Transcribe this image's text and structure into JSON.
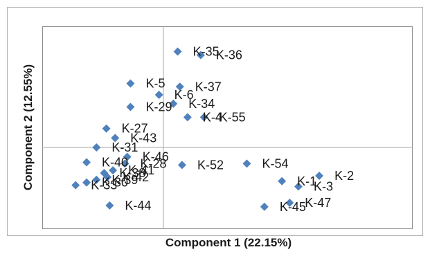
{
  "chart_data": {
    "type": "scatter",
    "title": "",
    "xlabel": "Component 1 (22.15%)",
    "ylabel": "Component 2 (12.55%)",
    "xlim": [
      -4,
      7
    ],
    "ylim": [
      -3,
      4.5
    ],
    "grid": false,
    "zero_lines": true,
    "marker": "diamond",
    "colors": {
      "marker": "#4f81bd",
      "frame": "#a6a6a6",
      "zero_line": "#a6a6a6"
    },
    "points": [
      {
        "label": "K-35",
        "x": 0.65,
        "y": 3.55
      },
      {
        "label": "K-36",
        "x": 1.7,
        "y": 3.42
      },
      {
        "label": "K-5",
        "x": -1.5,
        "y": 2.37
      },
      {
        "label": "K-37",
        "x": 0.75,
        "y": 2.25
      },
      {
        "label": "K-6",
        "x": -0.2,
        "y": 1.95
      },
      {
        "label": "K-34",
        "x": 0.45,
        "y": 1.62
      },
      {
        "label": "K-29",
        "x": -1.5,
        "y": 1.5
      },
      {
        "label": "K-4",
        "x": 1.1,
        "y": 1.12
      },
      {
        "label": "K-55",
        "x": 1.85,
        "y": 1.12
      },
      {
        "label": "K-27",
        "x": -2.6,
        "y": 0.7
      },
      {
        "label": "K-43",
        "x": -2.2,
        "y": 0.35
      },
      {
        "label": "K-31",
        "x": -3.05,
        "y": 0.0
      },
      {
        "label": "K-46",
        "x": -1.65,
        "y": -0.35
      },
      {
        "label": "K-28",
        "x": -1.75,
        "y": -0.6
      },
      {
        "label": "K-40",
        "x": -3.5,
        "y": -0.55
      },
      {
        "label": "K-41",
        "x": -2.3,
        "y": -0.85
      },
      {
        "label": "K-38",
        "x": -2.7,
        "y": -0.95
      },
      {
        "label": "K-42",
        "x": -2.55,
        "y": -1.1
      },
      {
        "label": "K-39",
        "x": -3.05,
        "y": -1.2
      },
      {
        "label": "K-30",
        "x": -3.5,
        "y": -1.3
      },
      {
        "label": "K-33",
        "x": -4.0,
        "y": -1.4
      },
      {
        "label": "K-44",
        "x": -2.45,
        "y": -2.15
      },
      {
        "label": "K-52",
        "x": 0.85,
        "y": -0.65
      },
      {
        "label": "K-54",
        "x": 3.8,
        "y": -0.6
      },
      {
        "label": "K-1",
        "x": 5.4,
        "y": -1.25
      },
      {
        "label": "K-2",
        "x": 7.1,
        "y": -1.05
      },
      {
        "label": "K-3",
        "x": 6.15,
        "y": -1.45
      },
      {
        "label": "K-47",
        "x": 5.75,
        "y": -2.05
      },
      {
        "label": "K-45",
        "x": 4.6,
        "y": -2.2
      }
    ]
  }
}
